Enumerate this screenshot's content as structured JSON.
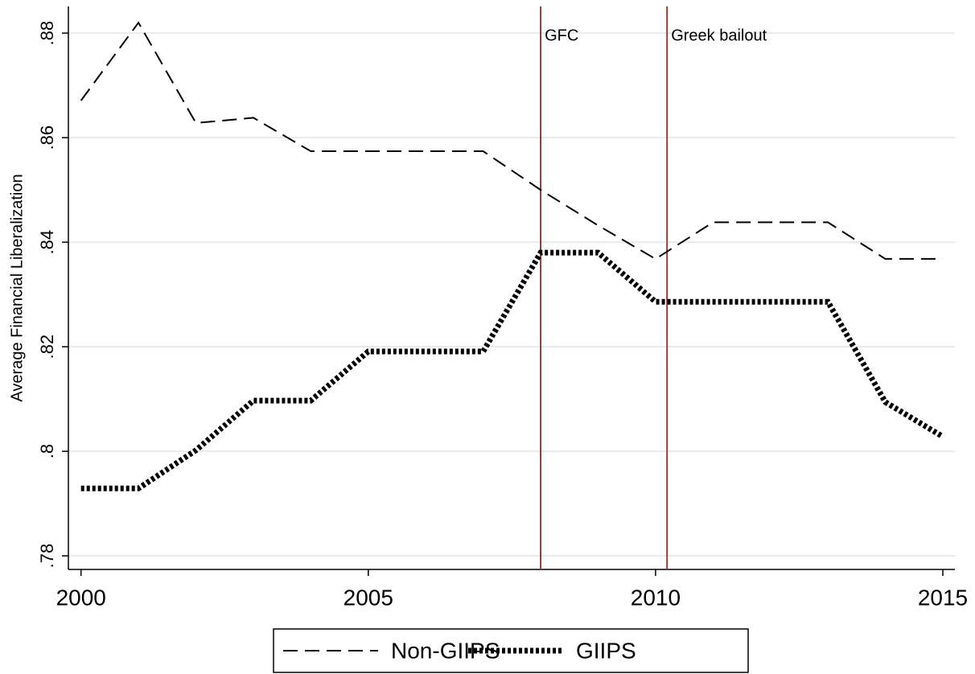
{
  "chart_data": {
    "type": "line",
    "y_label": "Average Financial Liberalization",
    "x": [
      2000,
      2001,
      2002,
      2003,
      2004,
      2005,
      2006,
      2007,
      2008,
      2009,
      2010,
      2011,
      2012,
      2013,
      2014,
      2015
    ],
    "series": [
      {
        "name": "Non-GIIPS",
        "color": "#000000",
        "style": "dashed",
        "values": [
          0.8671,
          0.882,
          0.8628,
          0.8638,
          0.8574,
          0.8574,
          0.8574,
          0.8574,
          0.85,
          0.8432,
          0.8368,
          0.8438,
          0.8438,
          0.8438,
          0.8368,
          0.8368
        ]
      },
      {
        "name": "GIIPS",
        "color": "#000000",
        "style": "dotted",
        "values": [
          0.7929,
          0.7929,
          0.8002,
          0.8097,
          0.8097,
          0.8191,
          0.8191,
          0.8191,
          0.838,
          0.838,
          0.8286,
          0.8286,
          0.8286,
          0.8286,
          0.8094,
          0.8028
        ]
      }
    ],
    "xlim": [
      1999.78,
      2015.21
    ],
    "xticks": [
      2000,
      2005,
      2010,
      2015
    ],
    "ylim": [
      0.7774,
      0.8851
    ],
    "yticks": [
      {
        "value": 0.78,
        "label": ".78"
      },
      {
        "value": 0.8,
        "label": ".8"
      },
      {
        "value": 0.82,
        "label": ".82"
      },
      {
        "value": 0.84,
        "label": ".84"
      },
      {
        "value": 0.86,
        "label": ".86"
      },
      {
        "value": 0.88,
        "label": ".88"
      }
    ],
    "grid": true,
    "grid_color": "#e3ecef",
    "vlines": [
      {
        "x": 2008,
        "label": "GFC",
        "color": "#973a3a"
      },
      {
        "x": 2010.2,
        "label": "Greek bailout",
        "color": "#973a3a"
      }
    ],
    "legend": "bottom"
  }
}
